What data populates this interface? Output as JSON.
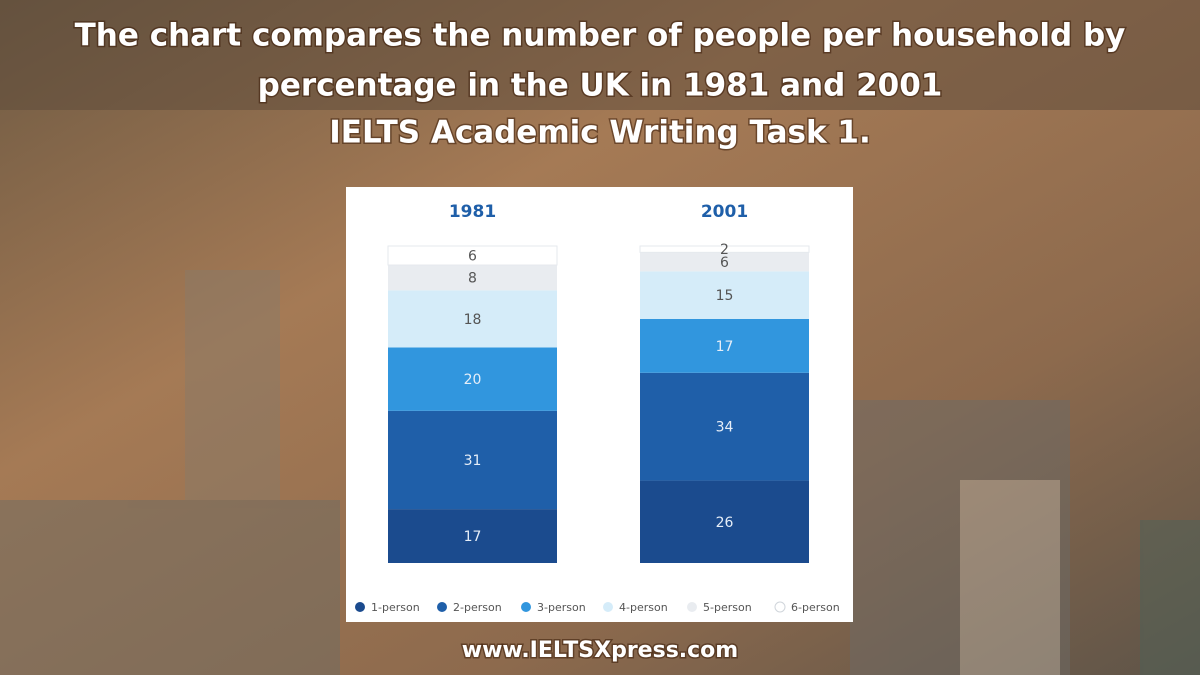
{
  "header": {
    "title_lines": [
      "The chart compares the number of people per household by",
      "percentage in the UK in 1981 and 2001",
      "IELTS Academic Writing Task 1."
    ]
  },
  "chart_data": {
    "type": "stacked_bar",
    "categories": [
      "1981",
      "2001"
    ],
    "series": [
      {
        "name": "1-person",
        "color": "#1b4b8e",
        "values": [
          17,
          26
        ]
      },
      {
        "name": "2-person",
        "color": "#1f5fa9",
        "values": [
          31,
          34
        ]
      },
      {
        "name": "3-person",
        "color": "#3196de",
        "values": [
          20,
          17
        ]
      },
      {
        "name": "4-person",
        "color": "#d5ecf9",
        "values": [
          18,
          15
        ]
      },
      {
        "name": "5-person",
        "color": "#e9ecf0",
        "values": [
          8,
          6
        ]
      },
      {
        "name": "6-person",
        "color": "#ffffff",
        "values": [
          6,
          2
        ]
      }
    ]
  },
  "footer": {
    "url": "www.IELTSXpress.com"
  }
}
